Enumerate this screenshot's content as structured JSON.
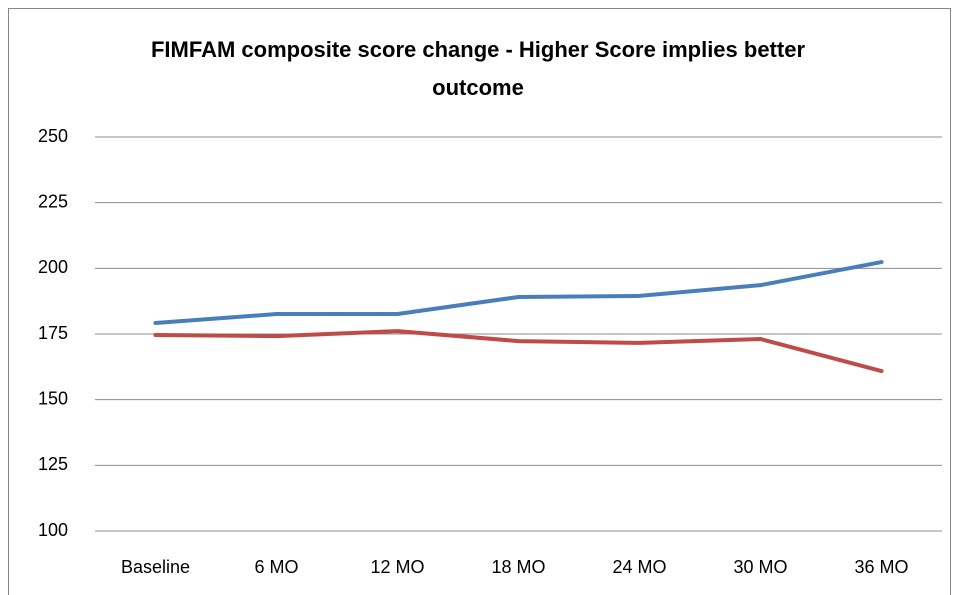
{
  "chart_data": {
    "type": "line",
    "title": "FIMFAM composite score change - Higher Score implies better outcome",
    "categories": [
      "Baseline",
      "6 MO",
      "12 MO",
      "18 MO",
      "24 MO",
      "30 MO",
      "36 MO"
    ],
    "series": [
      {
        "color": "#4a7ebb",
        "values": [
          179.2,
          182.6,
          182.6,
          189.1,
          189.5,
          193.6,
          202.4
        ]
      },
      {
        "color": "#be4b48",
        "values": [
          174.6,
          174.2,
          176.1,
          172.3,
          171.6,
          173.1,
          160.9
        ]
      }
    ],
    "ylim": [
      100,
      250
    ],
    "yticks": [
      100,
      125,
      150,
      175,
      200,
      225,
      250
    ],
    "grid": true
  }
}
